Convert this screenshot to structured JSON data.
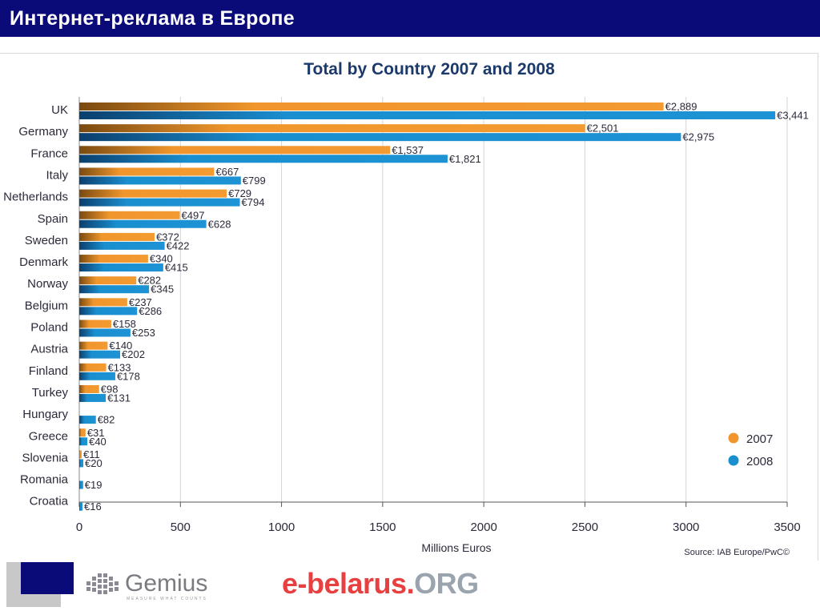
{
  "header": {
    "title": "Интернет-реклама в Европе"
  },
  "chart_data": {
    "type": "bar",
    "orientation": "horizontal",
    "title": "Total by Country 2007 and 2008",
    "xlabel": "Millions Euros",
    "ylabel": "",
    "source": "Source: IAB Europe/PwC©",
    "xlim": [
      0,
      3500
    ],
    "xticks": [
      "0",
      "500",
      "1000",
      "1500",
      "2000",
      "2500",
      "3000",
      "3500"
    ],
    "grid": "vertical",
    "legend_position": "bottom-right",
    "categories": [
      "UK",
      "Germany",
      "France",
      "Italy",
      "Netherlands",
      "Spain",
      "Sweden",
      "Denmark",
      "Norway",
      "Belgium",
      "Poland",
      "Austria",
      "Finland",
      "Turkey",
      "Hungary",
      "Greece",
      "Slovenia",
      "Romania",
      "Croatia"
    ],
    "series": [
      {
        "name": "2007",
        "color": "#f0962c",
        "values": [
          2889,
          2501,
          1537,
          667,
          729,
          497,
          372,
          340,
          282,
          237,
          158,
          140,
          133,
          98,
          null,
          31,
          11,
          null,
          null
        ],
        "labels": [
          "€2,889",
          "€2,501",
          "€1,537",
          "€667",
          "€729",
          "€497",
          "€372",
          "€340",
          "€282",
          "€237",
          "€158",
          "€140",
          "€133",
          "€98",
          "",
          "€31",
          "€11",
          "",
          ""
        ]
      },
      {
        "name": "2008",
        "color": "#1a8fd0",
        "values": [
          3441,
          2975,
          1821,
          799,
          794,
          628,
          422,
          415,
          345,
          286,
          253,
          202,
          178,
          131,
          82,
          40,
          20,
          19,
          16
        ],
        "labels": [
          "€3,441",
          "€2,975",
          "€1,821",
          "€799",
          "€794",
          "€628",
          "€422",
          "€415",
          "€345",
          "€286",
          "€253",
          "€202",
          "€178",
          "€131",
          "€82",
          "€40",
          "€20",
          "€19",
          "€16"
        ]
      }
    ]
  },
  "footer": {
    "gemius": {
      "name": "Gemius",
      "tagline": "MEASURE WHAT COUNTS"
    },
    "ebelarus": {
      "main": "e-belarus",
      "dot": ".",
      "org": "ORG"
    }
  }
}
